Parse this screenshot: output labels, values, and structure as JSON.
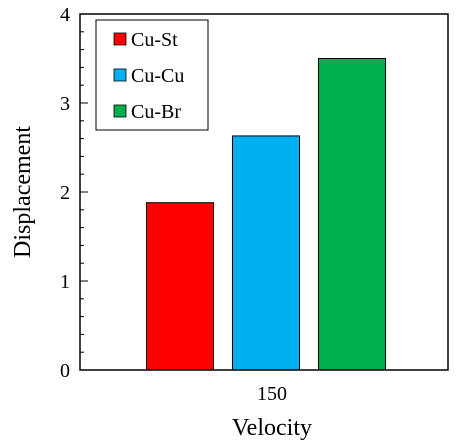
{
  "chart_data": {
    "type": "bar",
    "categories": [
      "150"
    ],
    "series": [
      {
        "name": "Cu-St",
        "values": [
          1.88
        ],
        "color": "#ff0000"
      },
      {
        "name": "Cu-Cu",
        "values": [
          2.63
        ],
        "color": "#00b0f0"
      },
      {
        "name": "Cu-Br",
        "values": [
          3.5
        ],
        "color": "#00b050"
      }
    ],
    "xlabel": "Velocity",
    "ylabel": "Displacement",
    "ylim": [
      0,
      4
    ],
    "yticks": [
      "0",
      "1",
      "2",
      "3",
      "4"
    ],
    "grid": false,
    "legend_position": "top-left"
  }
}
